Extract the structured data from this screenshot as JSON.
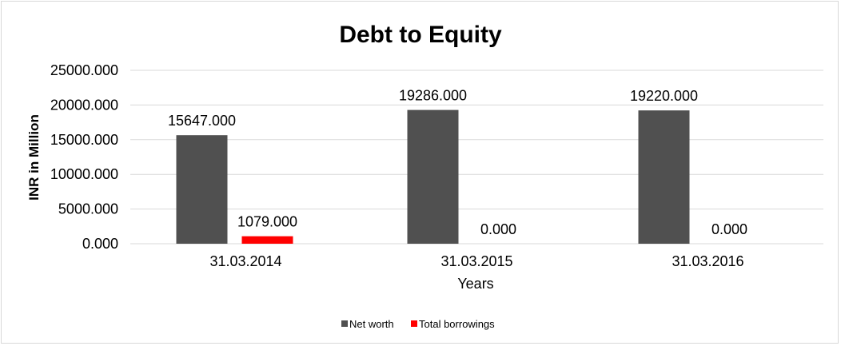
{
  "chart_data": {
    "type": "bar",
    "title": "Debt to Equity",
    "xlabel": "Years",
    "ylabel": "INR in Million",
    "categories": [
      "31.03.2014",
      "31.03.2015",
      "31.03.2016"
    ],
    "series": [
      {
        "name": "Net worth",
        "values": [
          15647,
          19286,
          19220
        ],
        "labels": [
          "15647.000",
          "19286.000",
          "19220.000"
        ],
        "color": "#505050"
      },
      {
        "name": "Total borrowings",
        "values": [
          1079,
          0,
          0
        ],
        "labels": [
          "1079.000",
          "0.000",
          "0.000"
        ],
        "color": "#ff0000"
      }
    ],
    "ylim": [
      0,
      25000
    ],
    "yticks": [
      0,
      5000,
      10000,
      15000,
      20000,
      25000
    ],
    "ytick_labels": [
      "0.000",
      "5000.000",
      "10000.000",
      "15000.000",
      "20000.000",
      "25000.000"
    ],
    "grid": true,
    "legend": "bottom"
  }
}
